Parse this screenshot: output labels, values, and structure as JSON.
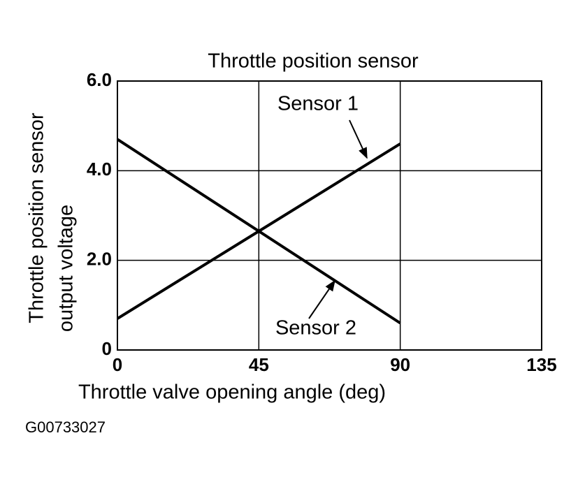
{
  "chart_data": {
    "type": "line",
    "title": "Throttle position sensor",
    "xlabel": "Throttle valve opening angle (deg)",
    "ylabel": [
      "Throttle position sensor",
      "output voltage"
    ],
    "x": [
      0,
      90
    ],
    "series": [
      {
        "name": "Sensor 1",
        "color": "#000000",
        "values": [
          0.7,
          4.6
        ]
      },
      {
        "name": "Sensor 2",
        "color": "#000000",
        "values": [
          4.7,
          0.6
        ]
      }
    ],
    "xlim": [
      0,
      135
    ],
    "xticks": [
      0,
      45,
      90,
      135
    ],
    "ylim": [
      0,
      6
    ],
    "yticks": [
      0,
      {
        "value": 2,
        "label": "2.0"
      },
      {
        "value": 4,
        "label": "4.0"
      },
      {
        "value": 6,
        "label": "6.0"
      }
    ],
    "grid": true,
    "figure_code": "G00733027"
  }
}
